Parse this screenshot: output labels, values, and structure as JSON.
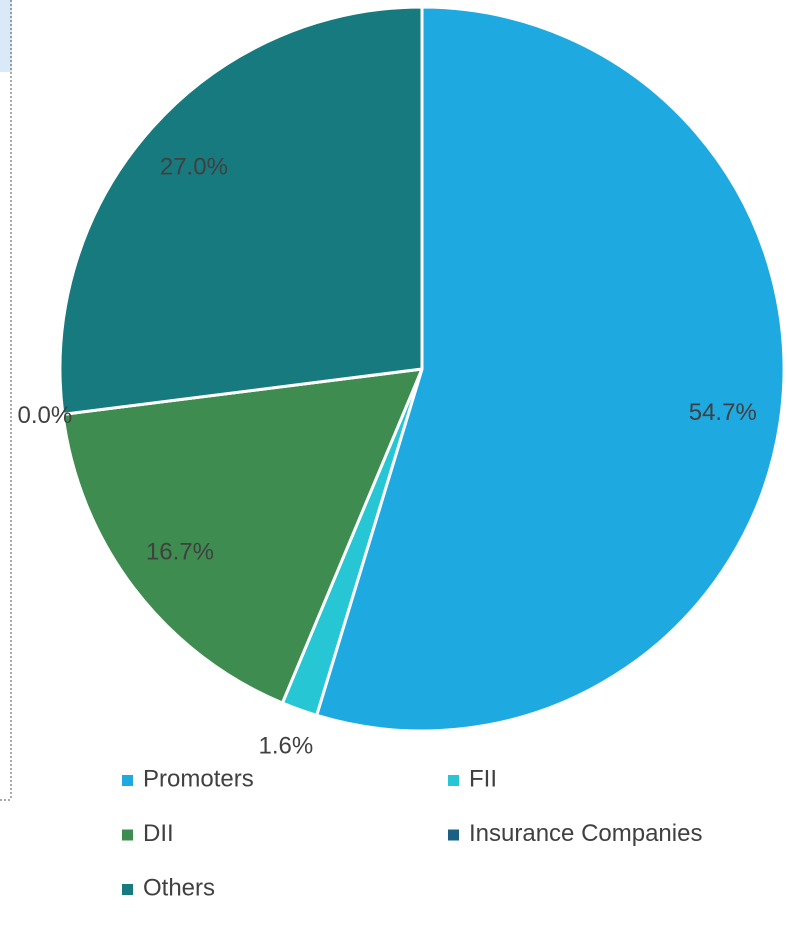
{
  "chart_data": {
    "type": "pie",
    "categories": [
      "Promoters",
      "FII",
      "DII",
      "Insurance Companies",
      "Others"
    ],
    "values": [
      54.7,
      1.6,
      16.7,
      0.0,
      27.0
    ],
    "value_labels": [
      "54.7%",
      "1.6%",
      "16.7%",
      "0.0%",
      "27.0%"
    ],
    "colors": [
      "#1eaae1",
      "#26c6d4",
      "#3e8c50",
      "#1a6082",
      "#177a7e"
    ],
    "legend": "bottom"
  }
}
